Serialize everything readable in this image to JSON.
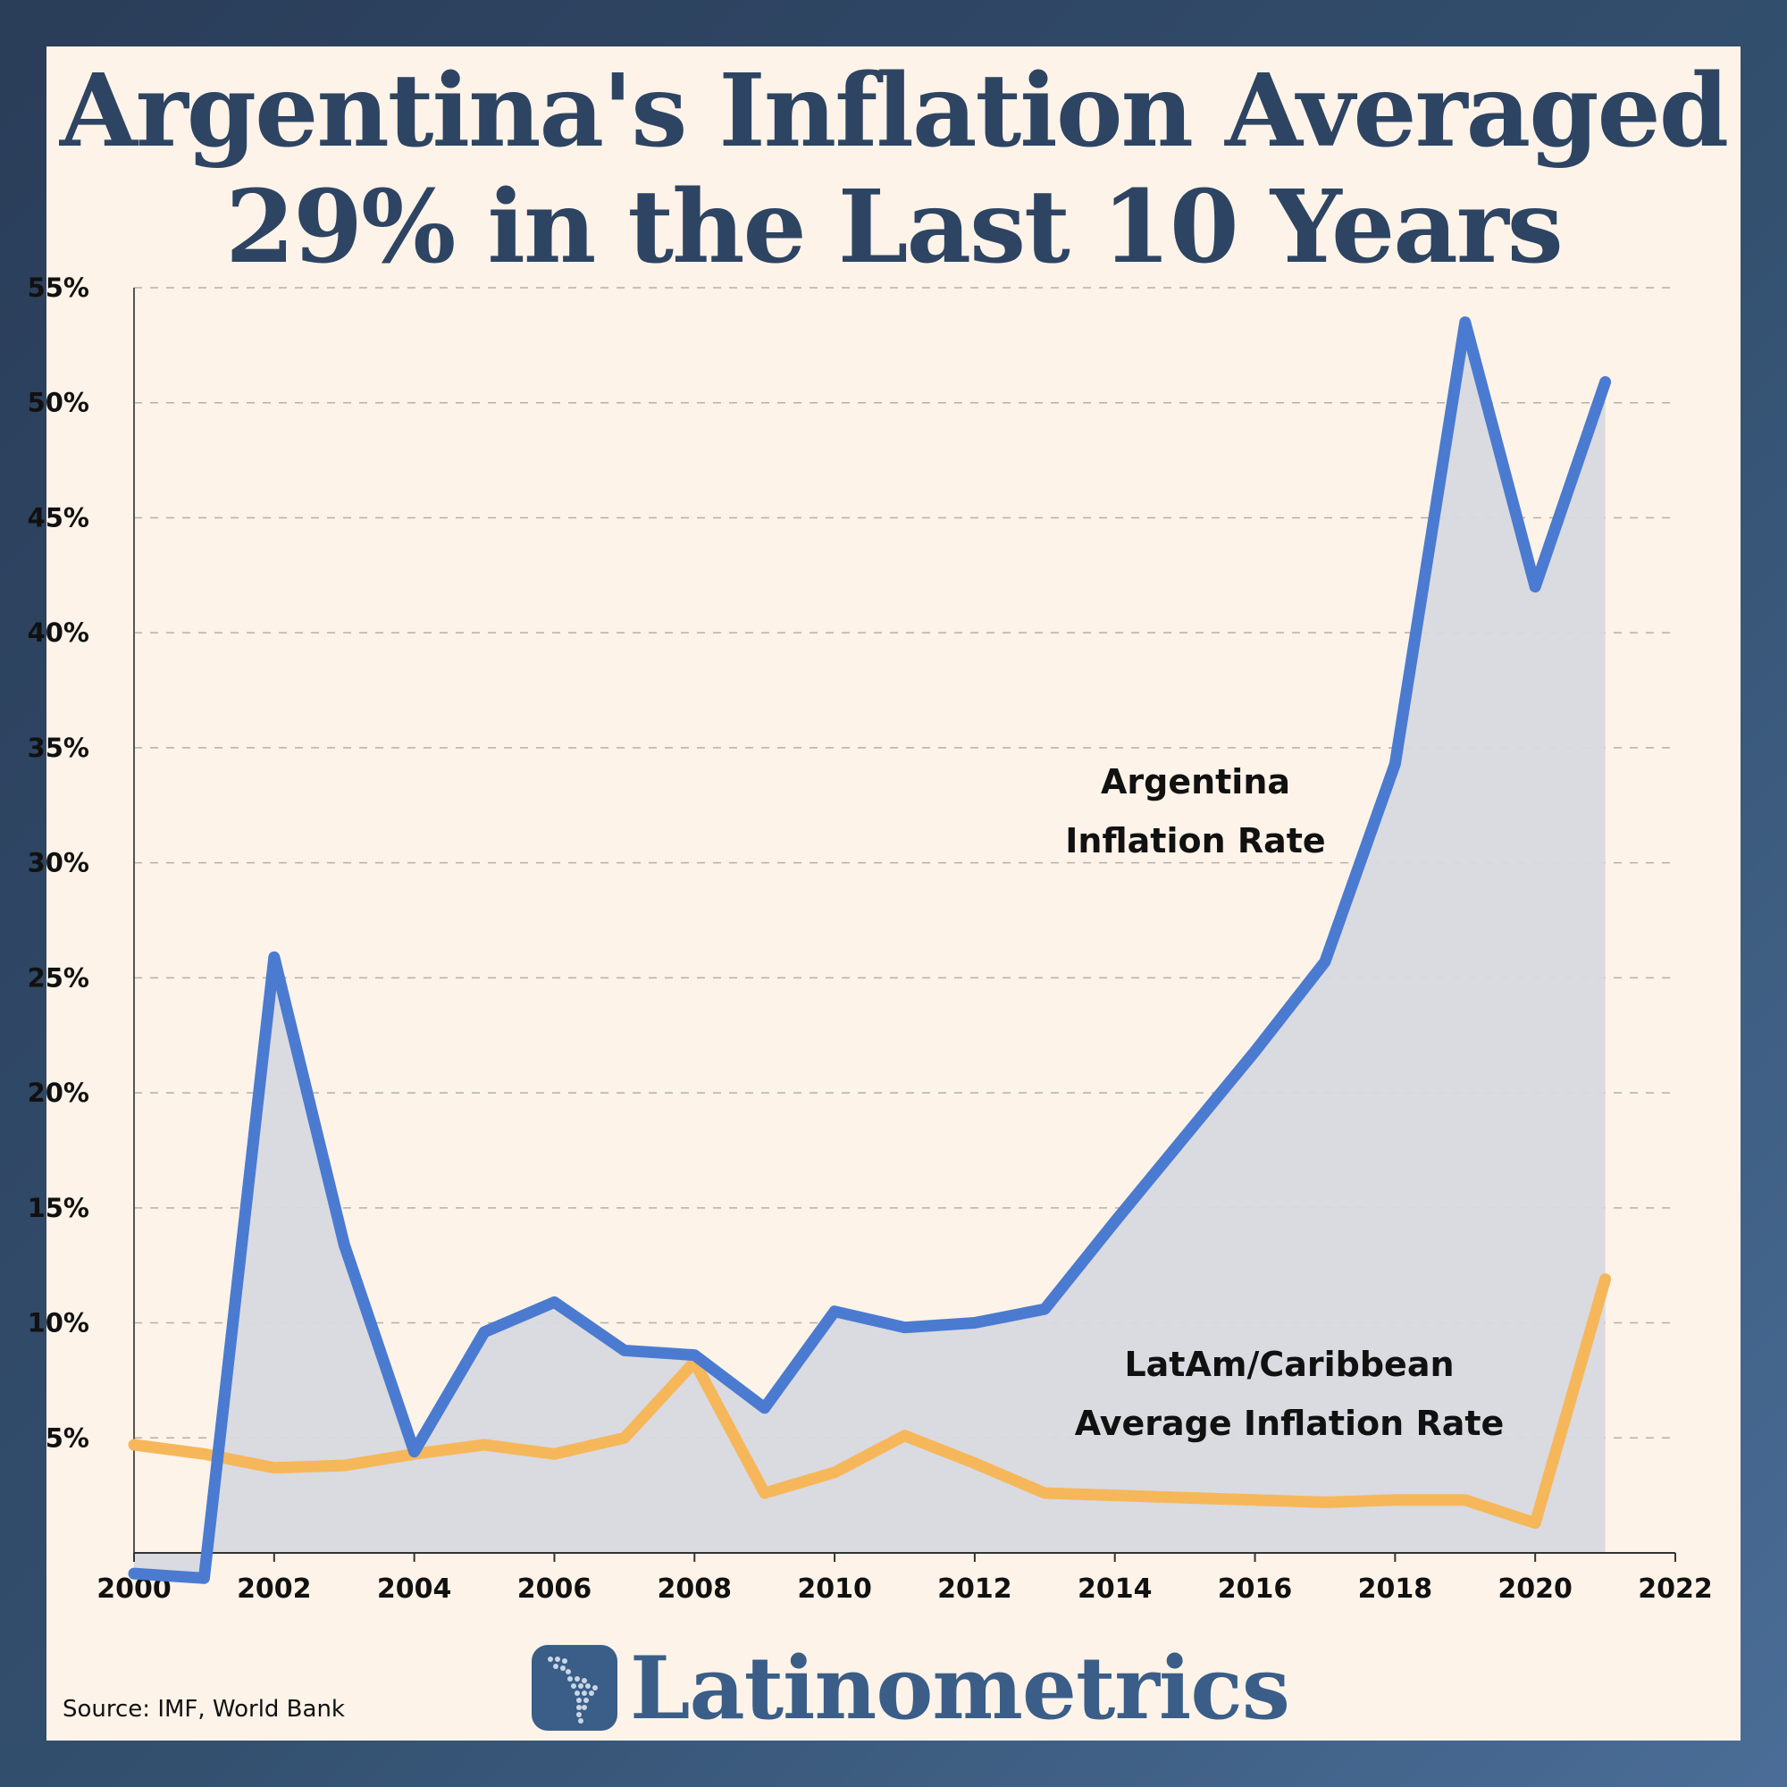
{
  "title": {
    "line1": "Argentina's Inflation Averaged",
    "line2": "29% in the Last 10 Years"
  },
  "brand": {
    "name": "Latinometrics",
    "logo_icon": "latin-america-map-icon"
  },
  "source": "Source: IMF, World Bank",
  "colors": {
    "argentina": "#4a7bd1",
    "latam": "#f6b75a",
    "area_fill": "#d8d8e0",
    "title": "#2e4463",
    "brand": "#3a5e87"
  },
  "chart_data": {
    "type": "line",
    "title": "Argentina's Inflation Averaged 29% in the Last 10 Years",
    "x": [
      2000,
      2001,
      2002,
      2003,
      2004,
      2005,
      2006,
      2007,
      2008,
      2009,
      2010,
      2011,
      2012,
      2013,
      2014,
      2015,
      2016,
      2017,
      2018,
      2019,
      2020,
      2021
    ],
    "series": [
      {
        "name": "Argentina Inflation Rate",
        "label_lines": [
          "Argentina",
          "Inflation Rate"
        ],
        "area_fill": true,
        "values": [
          -0.9,
          -1.1,
          25.9,
          13.4,
          4.4,
          9.6,
          10.9,
          8.8,
          8.6,
          6.3,
          10.5,
          9.8,
          10.0,
          10.6,
          14.4,
          18.1,
          21.8,
          25.7,
          34.3,
          53.5,
          42.0,
          50.9
        ]
      },
      {
        "name": "LatAm/Caribbean Average Inflation Rate",
        "label_lines": [
          "LatAm/Caribbean",
          "Average Inflation Rate"
        ],
        "area_fill": false,
        "values": [
          4.7,
          4.3,
          3.7,
          3.8,
          4.3,
          4.7,
          4.3,
          5.0,
          8.3,
          2.6,
          3.5,
          5.1,
          3.9,
          2.6,
          2.5,
          2.4,
          2.3,
          2.2,
          2.3,
          2.3,
          1.3,
          11.9
        ]
      }
    ],
    "yticks": [
      5,
      10,
      15,
      20,
      25,
      30,
      35,
      40,
      45,
      50,
      55
    ],
    "ytick_labels": [
      "5%",
      "10%",
      "15%",
      "20%",
      "25%",
      "30%",
      "35%",
      "40%",
      "45%",
      "50%",
      "55%"
    ],
    "xticks": [
      2000,
      2002,
      2004,
      2006,
      2008,
      2010,
      2012,
      2014,
      2016,
      2018,
      2020,
      2022
    ],
    "xtick_labels": [
      "2000",
      "2002",
      "2004",
      "2006",
      "2008",
      "2010",
      "2012",
      "2014",
      "2016",
      "2018",
      "2020",
      "2022"
    ],
    "xlim": [
      2000,
      2022
    ],
    "ylim": [
      0,
      55
    ],
    "grid": "horizontal dashed",
    "legend": "inline labels"
  }
}
